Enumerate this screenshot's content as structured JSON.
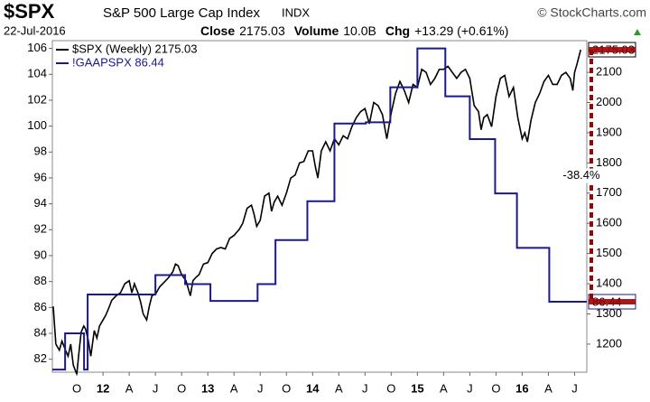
{
  "header": {
    "symbol": "$SPX",
    "name": "S&P 500 Large Cap Index",
    "exchange": "INDX",
    "credit": "© StockCharts.com",
    "date": "22-Jul-2016",
    "stats": [
      {
        "label": "Close",
        "value": "2175.03"
      },
      {
        "label": "Volume",
        "value": "10.0B"
      },
      {
        "label": "Chg",
        "value": "+13.29 (+0.61%)"
      }
    ]
  },
  "chart_data": {
    "type": "line",
    "xlim": [
      -0.8,
      60.4
    ],
    "xticks": [
      {
        "value": 2,
        "label": "O"
      },
      {
        "value": 5,
        "label": "12"
      },
      {
        "value": 8,
        "label": "A"
      },
      {
        "value": 11,
        "label": "J"
      },
      {
        "value": 14,
        "label": "O"
      },
      {
        "value": 17,
        "label": "13"
      },
      {
        "value": 20,
        "label": "A"
      },
      {
        "value": 23,
        "label": "J"
      },
      {
        "value": 26,
        "label": "O"
      },
      {
        "value": 29,
        "label": "14"
      },
      {
        "value": 32,
        "label": "A"
      },
      {
        "value": 35,
        "label": "J"
      },
      {
        "value": 38,
        "label": "O"
      },
      {
        "value": 41,
        "label": "15"
      },
      {
        "value": 44,
        "label": "A"
      },
      {
        "value": 47,
        "label": "J"
      },
      {
        "value": 50,
        "label": "O"
      },
      {
        "value": 53,
        "label": "16"
      },
      {
        "value": 56,
        "label": "A"
      },
      {
        "value": 59,
        "label": "J"
      }
    ],
    "ylim": [
      81,
      106.6
    ],
    "yticks": [
      82,
      84,
      86,
      88,
      90,
      92,
      94,
      96,
      98,
      100,
      102,
      104,
      106
    ],
    "y2lim": [
      1107,
      2205
    ],
    "y2ticks": [
      1200,
      1300,
      1400,
      1500,
      1600,
      1700,
      1800,
      1900,
      2000,
      2100
    ],
    "series": [
      {
        "name": "$SPX (Weekly) 2175.03",
        "color": "#000000",
        "axis": "y2",
        "last_value": 2175.03,
        "tag_color": "#a00000",
        "x": [
          -0.7,
          -0.4,
          0,
          0.3,
          0.7,
          1,
          1.3,
          1.6,
          2,
          2.2,
          2.5,
          2.8,
          3,
          3.3,
          3.6,
          4,
          4.3,
          4.6,
          5,
          5.3,
          5.6,
          6,
          6.5,
          7,
          7.5,
          8,
          8.3,
          8.6,
          9,
          9.3,
          9.6,
          10,
          10.3,
          10.6,
          11,
          11.5,
          12,
          12.5,
          13,
          13.3,
          13.6,
          14,
          14.5,
          15,
          15.3,
          15.6,
          16,
          16.5,
          17,
          17.5,
          18,
          18.5,
          19,
          19.5,
          20,
          20.3,
          20.6,
          21,
          21.5,
          22,
          22.3,
          22.6,
          23,
          23.5,
          24,
          24.3,
          24.6,
          25,
          25.5,
          26,
          26.5,
          27,
          27.5,
          28,
          28.5,
          29,
          29.3,
          29.6,
          30,
          30.5,
          31,
          31.5,
          32,
          32.5,
          33,
          33.5,
          34,
          34.5,
          35,
          35.5,
          36,
          36.5,
          37,
          37.5,
          38,
          38.5,
          39,
          39.5,
          40,
          40.5,
          41,
          41.5,
          42,
          42.5,
          43,
          43.5,
          44,
          44.5,
          45,
          45.5,
          46,
          46.5,
          47,
          47.5,
          48,
          48.3,
          48.6,
          49,
          49.5,
          50,
          50.5,
          51,
          51.5,
          52,
          52.5,
          53,
          53.3,
          53.6,
          54,
          54.5,
          55,
          55.5,
          56,
          56.5,
          57,
          57.5,
          58,
          58.5,
          58.8,
          59,
          59.3,
          59.7
        ],
        "values": [
          1325,
          1200,
          1180,
          1210,
          1180,
          1160,
          1200,
          1130,
          1100,
          1160,
          1240,
          1260,
          1250,
          1215,
          1160,
          1245,
          1220,
          1260,
          1280,
          1295,
          1315,
          1345,
          1360,
          1370,
          1400,
          1410,
          1370,
          1400,
          1370,
          1340,
          1300,
          1280,
          1325,
          1360,
          1365,
          1390,
          1405,
          1420,
          1440,
          1465,
          1460,
          1430,
          1410,
          1360,
          1410,
          1420,
          1430,
          1465,
          1470,
          1500,
          1515,
          1520,
          1515,
          1550,
          1560,
          1570,
          1580,
          1600,
          1650,
          1660,
          1630,
          1590,
          1610,
          1690,
          1700,
          1640,
          1670,
          1690,
          1660,
          1700,
          1750,
          1760,
          1800,
          1805,
          1840,
          1840,
          1790,
          1750,
          1840,
          1870,
          1840,
          1880,
          1860,
          1890,
          1880,
          1920,
          1950,
          1970,
          1980,
          1930,
          2000,
          1990,
          1960,
          1880,
          1965,
          2030,
          2070,
          2040,
          2000,
          2060,
          2050,
          2110,
          2100,
          2060,
          2080,
          2110,
          2110,
          2120,
          2100,
          2080,
          2100,
          2110,
          2080,
          1990,
          1970,
          1910,
          1950,
          1960,
          1920,
          2020,
          2080,
          2090,
          2020,
          2050,
          1950,
          1880,
          1900,
          1870,
          1940,
          2000,
          2030,
          2070,
          2090,
          2060,
          2060,
          2090,
          2100,
          2080,
          2040,
          2100,
          2130,
          2175.03
        ]
      },
      {
        "name": "!GAAPSPX 86.44",
        "color": "#1a1a8c",
        "axis": "y",
        "step": "post",
        "last_value": 86.44,
        "tag_color": "#a00000",
        "x": [
          -0.8,
          0.66,
          2.83,
          3.24,
          11,
          14.4,
          17.3,
          22.7,
          24.75,
          28.4,
          31.5,
          35.1,
          37.9,
          41,
          44.2,
          47,
          49.9,
          52.4,
          56.1
        ],
        "values": [
          81.2,
          84,
          81.2,
          87,
          88.5,
          87.8,
          86.5,
          87.8,
          91.2,
          94.2,
          100.2,
          100.3,
          103,
          106,
          102.3,
          99,
          94.8,
          90.6,
          86.44
        ]
      }
    ],
    "annotations": [
      {
        "text": "-38.4%",
        "color": "#a00000"
      }
    ]
  }
}
